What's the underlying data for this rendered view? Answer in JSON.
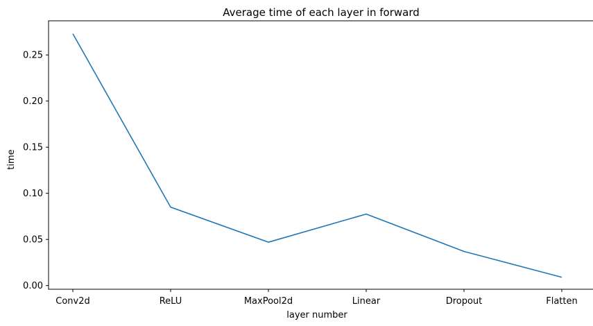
{
  "chart_data": {
    "type": "line",
    "title": "Average time of each layer in forward",
    "xlabel": "layer number",
    "ylabel": "time",
    "categories": [
      "Conv2d",
      "ReLU",
      "MaxPool2d",
      "Linear",
      "Dropout",
      "Flatten"
    ],
    "series": [
      {
        "values": [
          0.273,
          0.085,
          0.047,
          0.0775,
          0.037,
          0.009
        ]
      }
    ],
    "yticks": [
      "0.00",
      "0.05",
      "0.10",
      "0.15",
      "0.20",
      "0.25"
    ],
    "ylim": [
      -0.004,
      0.287
    ],
    "grid": false,
    "line_color": "#1f77b4"
  }
}
